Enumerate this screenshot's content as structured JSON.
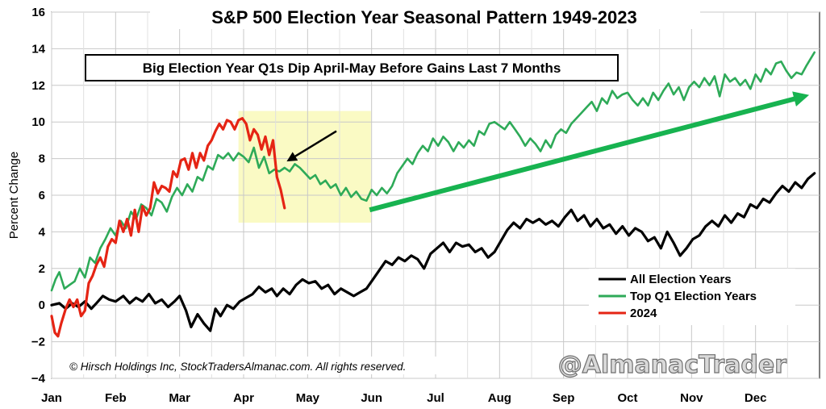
{
  "chart_data": {
    "type": "line",
    "title": "S&P 500 Election Year Seasonal Pattern 1949-2023",
    "ylabel": "Percent Change",
    "xlabel": "",
    "ylim": [
      -4,
      16
    ],
    "yticks": [
      "−4",
      "−2",
      "0",
      "2",
      "4",
      "6",
      "8",
      "10",
      "12",
      "14",
      "16"
    ],
    "xlim": [
      0,
      12
    ],
    "xticks": [
      {
        "label": "Jan",
        "x": 0
      },
      {
        "label": "Feb",
        "x": 1
      },
      {
        "label": "Mar",
        "x": 2
      },
      {
        "label": "Apr",
        "x": 3
      },
      {
        "label": "May",
        "x": 4
      },
      {
        "label": "Jun",
        "x": 5
      },
      {
        "label": "Jul",
        "x": 6
      },
      {
        "label": "Aug",
        "x": 7
      },
      {
        "label": "Sep",
        "x": 8
      },
      {
        "label": "Oct",
        "x": 9
      },
      {
        "label": "Nov",
        "x": 10
      },
      {
        "label": "Dec",
        "x": 11
      }
    ],
    "grid": true,
    "legend_position": "lower-right",
    "annotation": "Big Election Year Q1s Dip April-May Before Gains Last 7 Months",
    "highlight": {
      "x": [
        2.92,
        4.99
      ],
      "y": [
        4.5,
        10.6
      ],
      "color": "#fafac4"
    },
    "annotation_arrow": {
      "from": [
        4.45,
        9.5
      ],
      "to": [
        3.7,
        7.9
      ]
    },
    "trend_arrow": {
      "from": [
        4.97,
        5.2
      ],
      "to": [
        11.92,
        11.5
      ],
      "color": "#17b350"
    },
    "copyright": "© Hirsch Holdings Inc, StockTradersAlmanac.com. All rights reserved.",
    "watermark": "@AlmanacTrader",
    "series": [
      {
        "name": "All Election Years",
        "color": "#000000",
        "x": [
          0.0,
          0.12,
          0.22,
          0.32,
          0.42,
          0.52,
          0.62,
          0.7,
          0.8,
          0.9,
          1.0,
          1.12,
          1.22,
          1.32,
          1.42,
          1.52,
          1.62,
          1.72,
          1.82,
          1.92,
          2.0,
          2.1,
          2.18,
          2.28,
          2.38,
          2.48,
          2.56,
          2.64,
          2.74,
          2.84,
          2.94,
          3.04,
          3.14,
          3.24,
          3.34,
          3.44,
          3.52,
          3.62,
          3.72,
          3.82,
          3.92,
          4.02,
          4.12,
          4.22,
          4.32,
          4.42,
          4.52,
          4.62,
          4.72,
          4.82,
          4.92,
          5.02,
          5.12,
          5.22,
          5.32,
          5.42,
          5.52,
          5.62,
          5.72,
          5.82,
          5.92,
          6.02,
          6.12,
          6.22,
          6.32,
          6.42,
          6.52,
          6.62,
          6.72,
          6.82,
          6.92,
          7.02,
          7.12,
          7.22,
          7.32,
          7.42,
          7.52,
          7.62,
          7.72,
          7.82,
          7.92,
          8.02,
          8.12,
          8.22,
          8.32,
          8.42,
          8.52,
          8.62,
          8.72,
          8.82,
          8.92,
          9.02,
          9.12,
          9.22,
          9.32,
          9.42,
          9.52,
          9.62,
          9.72,
          9.82,
          9.92,
          10.02,
          10.12,
          10.22,
          10.32,
          10.42,
          10.52,
          10.62,
          10.72,
          10.82,
          10.92,
          11.02,
          11.12,
          11.22,
          11.32,
          11.42,
          11.52,
          11.62,
          11.72,
          11.82,
          11.92
        ],
        "y": [
          0.0,
          0.1,
          -0.2,
          0.1,
          -0.1,
          0.2,
          -0.2,
          0.1,
          0.5,
          0.3,
          0.2,
          0.5,
          0.1,
          0.4,
          0.2,
          0.6,
          0.1,
          0.3,
          -0.1,
          0.2,
          0.5,
          -0.3,
          -1.2,
          -0.5,
          -1.0,
          -1.4,
          -0.2,
          -0.6,
          0.0,
          -0.2,
          0.2,
          0.4,
          0.6,
          1.0,
          0.7,
          0.9,
          0.5,
          0.9,
          0.6,
          1.1,
          1.4,
          1.2,
          1.3,
          0.9,
          1.1,
          0.6,
          0.9,
          0.7,
          0.5,
          0.7,
          0.9,
          1.4,
          1.9,
          2.4,
          2.2,
          2.6,
          2.4,
          2.7,
          2.5,
          2.0,
          2.8,
          3.1,
          3.4,
          2.9,
          3.4,
          3.2,
          3.3,
          2.9,
          3.1,
          2.6,
          2.9,
          3.5,
          4.1,
          4.5,
          4.2,
          4.7,
          4.5,
          4.7,
          4.4,
          4.6,
          4.3,
          4.8,
          5.2,
          4.6,
          4.9,
          4.3,
          4.7,
          4.2,
          4.4,
          3.9,
          4.3,
          3.8,
          4.2,
          4.0,
          3.5,
          3.7,
          3.1,
          4.0,
          3.4,
          2.7,
          3.1,
          3.6,
          3.8,
          4.3,
          4.6,
          4.3,
          4.9,
          4.5,
          5.0,
          4.8,
          5.5,
          5.3,
          5.8,
          5.6,
          6.1,
          6.5,
          6.2,
          6.7,
          6.4,
          6.9,
          7.2
        ]
      },
      {
        "name": "Top Q1 Election Years",
        "color": "#2eaa58",
        "x": [
          0.0,
          0.06,
          0.12,
          0.2,
          0.28,
          0.36,
          0.44,
          0.52,
          0.6,
          0.68,
          0.76,
          0.84,
          0.92,
          1.0,
          1.08,
          1.16,
          1.24,
          1.32,
          1.4,
          1.48,
          1.56,
          1.64,
          1.72,
          1.8,
          1.88,
          1.96,
          2.04,
          2.12,
          2.2,
          2.28,
          2.36,
          2.44,
          2.52,
          2.6,
          2.68,
          2.76,
          2.84,
          2.92,
          3.0,
          3.08,
          3.16,
          3.24,
          3.32,
          3.4,
          3.48,
          3.56,
          3.64,
          3.72,
          3.8,
          3.88,
          3.96,
          4.04,
          4.12,
          4.2,
          4.28,
          4.36,
          4.44,
          4.52,
          4.6,
          4.68,
          4.76,
          4.84,
          4.92,
          5.0,
          5.08,
          5.16,
          5.24,
          5.32,
          5.4,
          5.48,
          5.56,
          5.64,
          5.72,
          5.8,
          5.88,
          5.96,
          6.04,
          6.12,
          6.2,
          6.28,
          6.36,
          6.44,
          6.52,
          6.6,
          6.68,
          6.76,
          6.84,
          6.92,
          7.0,
          7.08,
          7.16,
          7.24,
          7.32,
          7.4,
          7.48,
          7.56,
          7.64,
          7.72,
          7.8,
          7.88,
          7.96,
          8.04,
          8.12,
          8.2,
          8.28,
          8.36,
          8.44,
          8.52,
          8.6,
          8.68,
          8.76,
          8.84,
          8.92,
          9.0,
          9.08,
          9.16,
          9.24,
          9.32,
          9.4,
          9.48,
          9.56,
          9.64,
          9.72,
          9.8,
          9.88,
          9.96,
          10.04,
          10.12,
          10.2,
          10.28,
          10.36,
          10.44,
          10.52,
          10.6,
          10.68,
          10.76,
          10.84,
          10.92,
          11.0,
          11.08,
          11.16,
          11.24,
          11.32,
          11.4,
          11.48,
          11.56,
          11.64,
          11.72,
          11.8,
          11.92
        ],
        "y": [
          0.8,
          1.4,
          1.8,
          0.9,
          1.1,
          1.3,
          2.0,
          1.5,
          2.6,
          2.3,
          3.1,
          3.6,
          4.2,
          3.8,
          4.6,
          4.2,
          5.1,
          4.7,
          5.5,
          5.3,
          4.9,
          5.8,
          5.6,
          5.1,
          5.9,
          6.4,
          6.0,
          6.6,
          6.2,
          7.0,
          6.8,
          7.6,
          7.4,
          8.2,
          8.0,
          8.3,
          7.9,
          8.3,
          8.1,
          7.8,
          8.6,
          7.5,
          8.1,
          7.2,
          7.4,
          7.3,
          7.5,
          7.3,
          7.7,
          7.5,
          7.2,
          6.9,
          7.1,
          6.6,
          6.8,
          6.4,
          6.6,
          6.0,
          6.4,
          5.9,
          6.2,
          5.8,
          5.7,
          6.3,
          6.0,
          6.4,
          6.1,
          6.5,
          7.2,
          7.6,
          8.0,
          7.7,
          8.3,
          8.7,
          8.4,
          9.1,
          8.7,
          9.2,
          8.9,
          8.4,
          8.9,
          8.6,
          9.0,
          8.7,
          9.5,
          9.3,
          9.9,
          10.0,
          9.8,
          9.6,
          10.0,
          9.6,
          9.2,
          8.7,
          9.1,
          8.8,
          8.4,
          9.0,
          8.6,
          9.3,
          9.6,
          9.4,
          9.9,
          10.2,
          10.5,
          10.8,
          11.1,
          10.6,
          11.3,
          11.0,
          11.7,
          11.3,
          11.5,
          11.6,
          11.2,
          10.9,
          11.3,
          10.9,
          11.6,
          11.2,
          11.7,
          12.1,
          11.5,
          11.9,
          11.2,
          11.9,
          12.2,
          11.9,
          12.4,
          12.0,
          12.5,
          11.4,
          12.6,
          12.2,
          12.4,
          12.0,
          12.3,
          11.8,
          12.6,
          12.2,
          12.9,
          12.6,
          13.2,
          13.3,
          12.8,
          12.4,
          12.7,
          12.6,
          13.1,
          13.8
        ]
      },
      {
        "name": "2024",
        "color": "#e52414",
        "x": [
          0.0,
          0.05,
          0.1,
          0.15,
          0.22,
          0.28,
          0.34,
          0.4,
          0.46,
          0.52,
          0.58,
          0.64,
          0.7,
          0.76,
          0.82,
          0.88,
          0.94,
          1.0,
          1.06,
          1.12,
          1.18,
          1.24,
          1.3,
          1.36,
          1.42,
          1.48,
          1.54,
          1.6,
          1.66,
          1.72,
          1.78,
          1.84,
          1.9,
          1.96,
          2.02,
          2.08,
          2.14,
          2.2,
          2.26,
          2.32,
          2.38,
          2.44,
          2.5,
          2.56,
          2.62,
          2.68,
          2.74,
          2.8,
          2.86,
          2.92,
          2.98,
          3.04,
          3.1,
          3.16,
          3.22,
          3.28,
          3.34,
          3.4,
          3.46,
          3.52,
          3.58,
          3.64
        ],
        "y": [
          -0.6,
          -1.5,
          -1.7,
          -1.0,
          -0.2,
          0.3,
          -0.1,
          0.3,
          -0.6,
          -0.3,
          1.2,
          1.6,
          2.2,
          2.6,
          2.1,
          3.2,
          3.6,
          3.4,
          4.6,
          4.0,
          4.7,
          3.8,
          5.2,
          4.0,
          5.4,
          4.9,
          5.3,
          6.7,
          6.1,
          6.5,
          6.4,
          6.2,
          7.3,
          7.0,
          7.9,
          8.0,
          7.4,
          8.3,
          7.5,
          8.3,
          7.9,
          8.7,
          9.0,
          9.5,
          9.9,
          9.6,
          10.1,
          10.0,
          9.6,
          10.1,
          10.2,
          9.9,
          9.0,
          9.6,
          9.3,
          8.5,
          9.2,
          8.2,
          9.0,
          7.0,
          6.3,
          5.3
        ]
      }
    ]
  }
}
